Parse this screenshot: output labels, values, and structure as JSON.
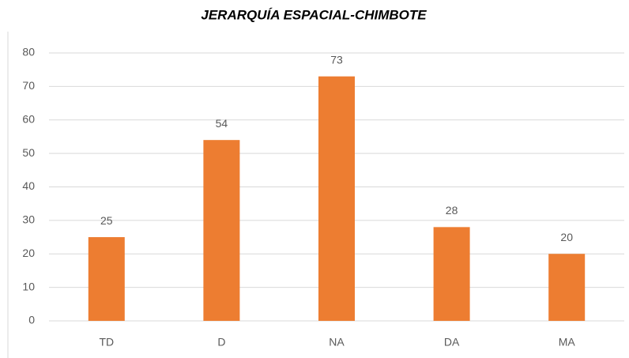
{
  "chart_data": {
    "type": "bar",
    "title": "JERARQUÍA ESPACIAL-CHIMBOTE",
    "categories": [
      "TD",
      "D",
      "NA",
      "DA",
      "MA"
    ],
    "values": [
      25,
      54,
      73,
      28,
      20
    ],
    "color": "#ed7d31",
    "ylim": [
      0,
      80
    ],
    "yticks": [
      0,
      10,
      20,
      30,
      40,
      50,
      60,
      70,
      80
    ],
    "grid": true
  }
}
